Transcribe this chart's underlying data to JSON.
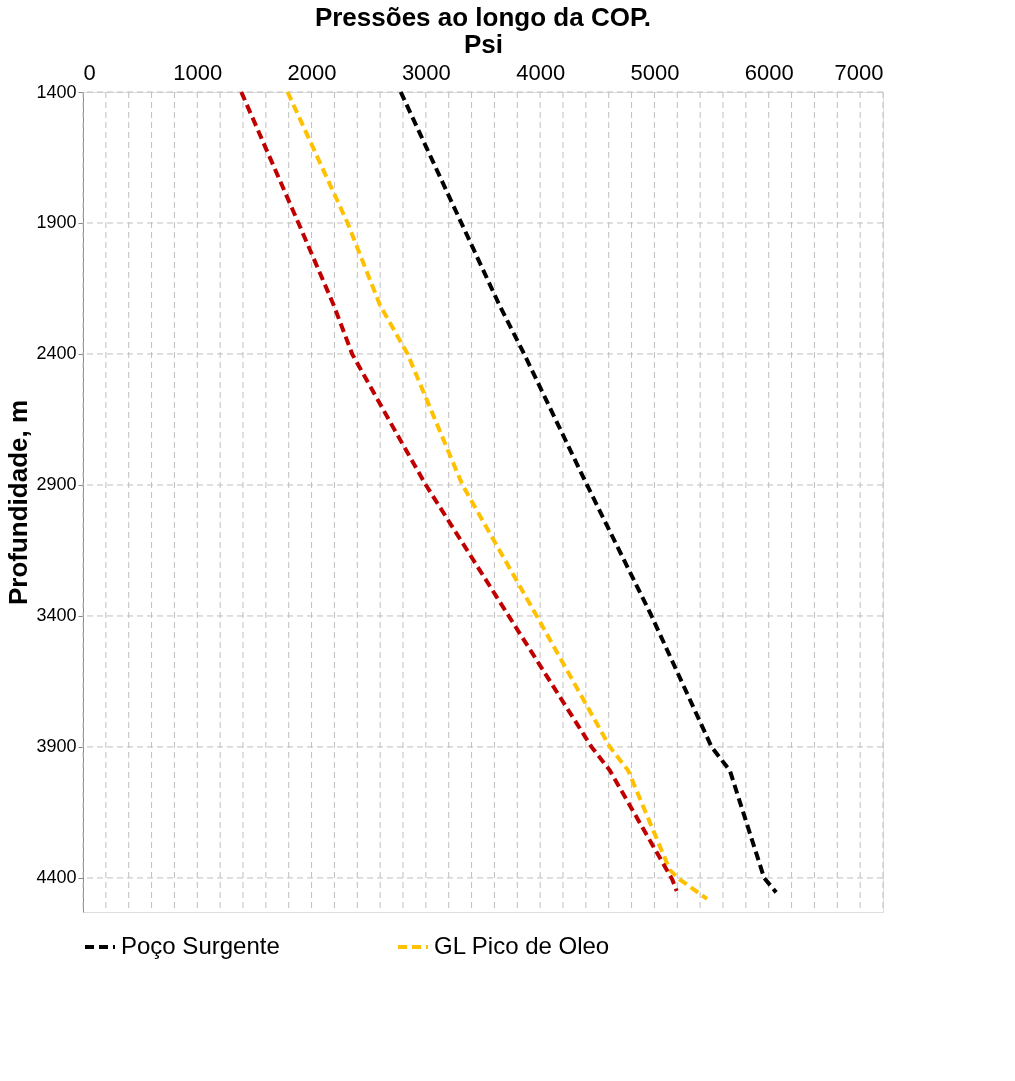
{
  "chart_data": {
    "type": "line",
    "title": "Pressões ao longo da COP.",
    "xlabel": "Psi",
    "ylabel": "Profundidade, m",
    "xlim": [
      0,
      7000
    ],
    "xticks": [
      0,
      {
        "value": 200,
        "label": null
      },
      {
        "value": 400,
        "label": null
      },
      {
        "value": 600,
        "label": null
      },
      {
        "value": 800,
        "label": null
      },
      1000,
      {
        "value": 1200,
        "label": null
      },
      {
        "value": 1400,
        "label": null
      },
      {
        "value": 1600,
        "label": null
      },
      {
        "value": 1800,
        "label": null
      },
      2000,
      {
        "value": 2200,
        "label": null
      },
      {
        "value": 2400,
        "label": null
      },
      {
        "value": 2600,
        "label": null
      },
      {
        "value": 2800,
        "label": null
      },
      3000,
      {
        "value": 3200,
        "label": null
      },
      {
        "value": 3400,
        "label": null
      },
      {
        "value": 3600,
        "label": null
      },
      {
        "value": 3800,
        "label": null
      },
      4000,
      {
        "value": 4200,
        "label": null
      },
      {
        "value": 4400,
        "label": null
      },
      {
        "value": 4600,
        "label": null
      },
      {
        "value": 4800,
        "label": null
      },
      5000,
      {
        "value": 5200,
        "label": null
      },
      {
        "value": 5400,
        "label": null
      },
      {
        "value": 5600,
        "label": null
      },
      {
        "value": 5800,
        "label": null
      },
      6000,
      {
        "value": 6200,
        "label": null
      },
      {
        "value": 6400,
        "label": null
      },
      {
        "value": 6600,
        "label": null
      },
      {
        "value": 6800,
        "label": null
      },
      7000
    ],
    "ylim": [
      4530,
      1400
    ],
    "yticks": [
      1400,
      1900,
      2400,
      2900,
      3400,
      3900,
      4400
    ],
    "grid": true,
    "legend": "bottom",
    "line_style": "dashed",
    "marker": "none",
    "series": [
      {
        "name": "Poço Surgente",
        "color": "#000000",
        "x": [
          2780,
          3645,
          3860,
          4410,
          4975,
          5500,
          5660,
          5960,
          6065
        ],
        "values": [
          1400,
          2215,
          2400,
          2900,
          3400,
          3900,
          3990,
          4400,
          4455
        ]
      },
      {
        "name": "GL Pico de Oleo",
        "color": "#ffc000",
        "x": [
          1790,
          2315,
          2600,
          2840,
          3320,
          3970,
          4610,
          4770,
          5015,
          5135,
          5220,
          5460
        ],
        "values": [
          1400,
          1900,
          2215,
          2400,
          2900,
          3400,
          3900,
          3990,
          4245,
          4370,
          4405,
          4480
        ]
      },
      {
        "color": "#c00000",
        "x": [
          1385,
          1885,
          2195,
          2355,
          2720,
          3000,
          3725,
          4450,
          4610,
          5155,
          5195
        ],
        "values": [
          1400,
          1900,
          2215,
          2400,
          2685,
          2900,
          3400,
          3900,
          3990,
          4405,
          4450
        ]
      }
    ]
  }
}
